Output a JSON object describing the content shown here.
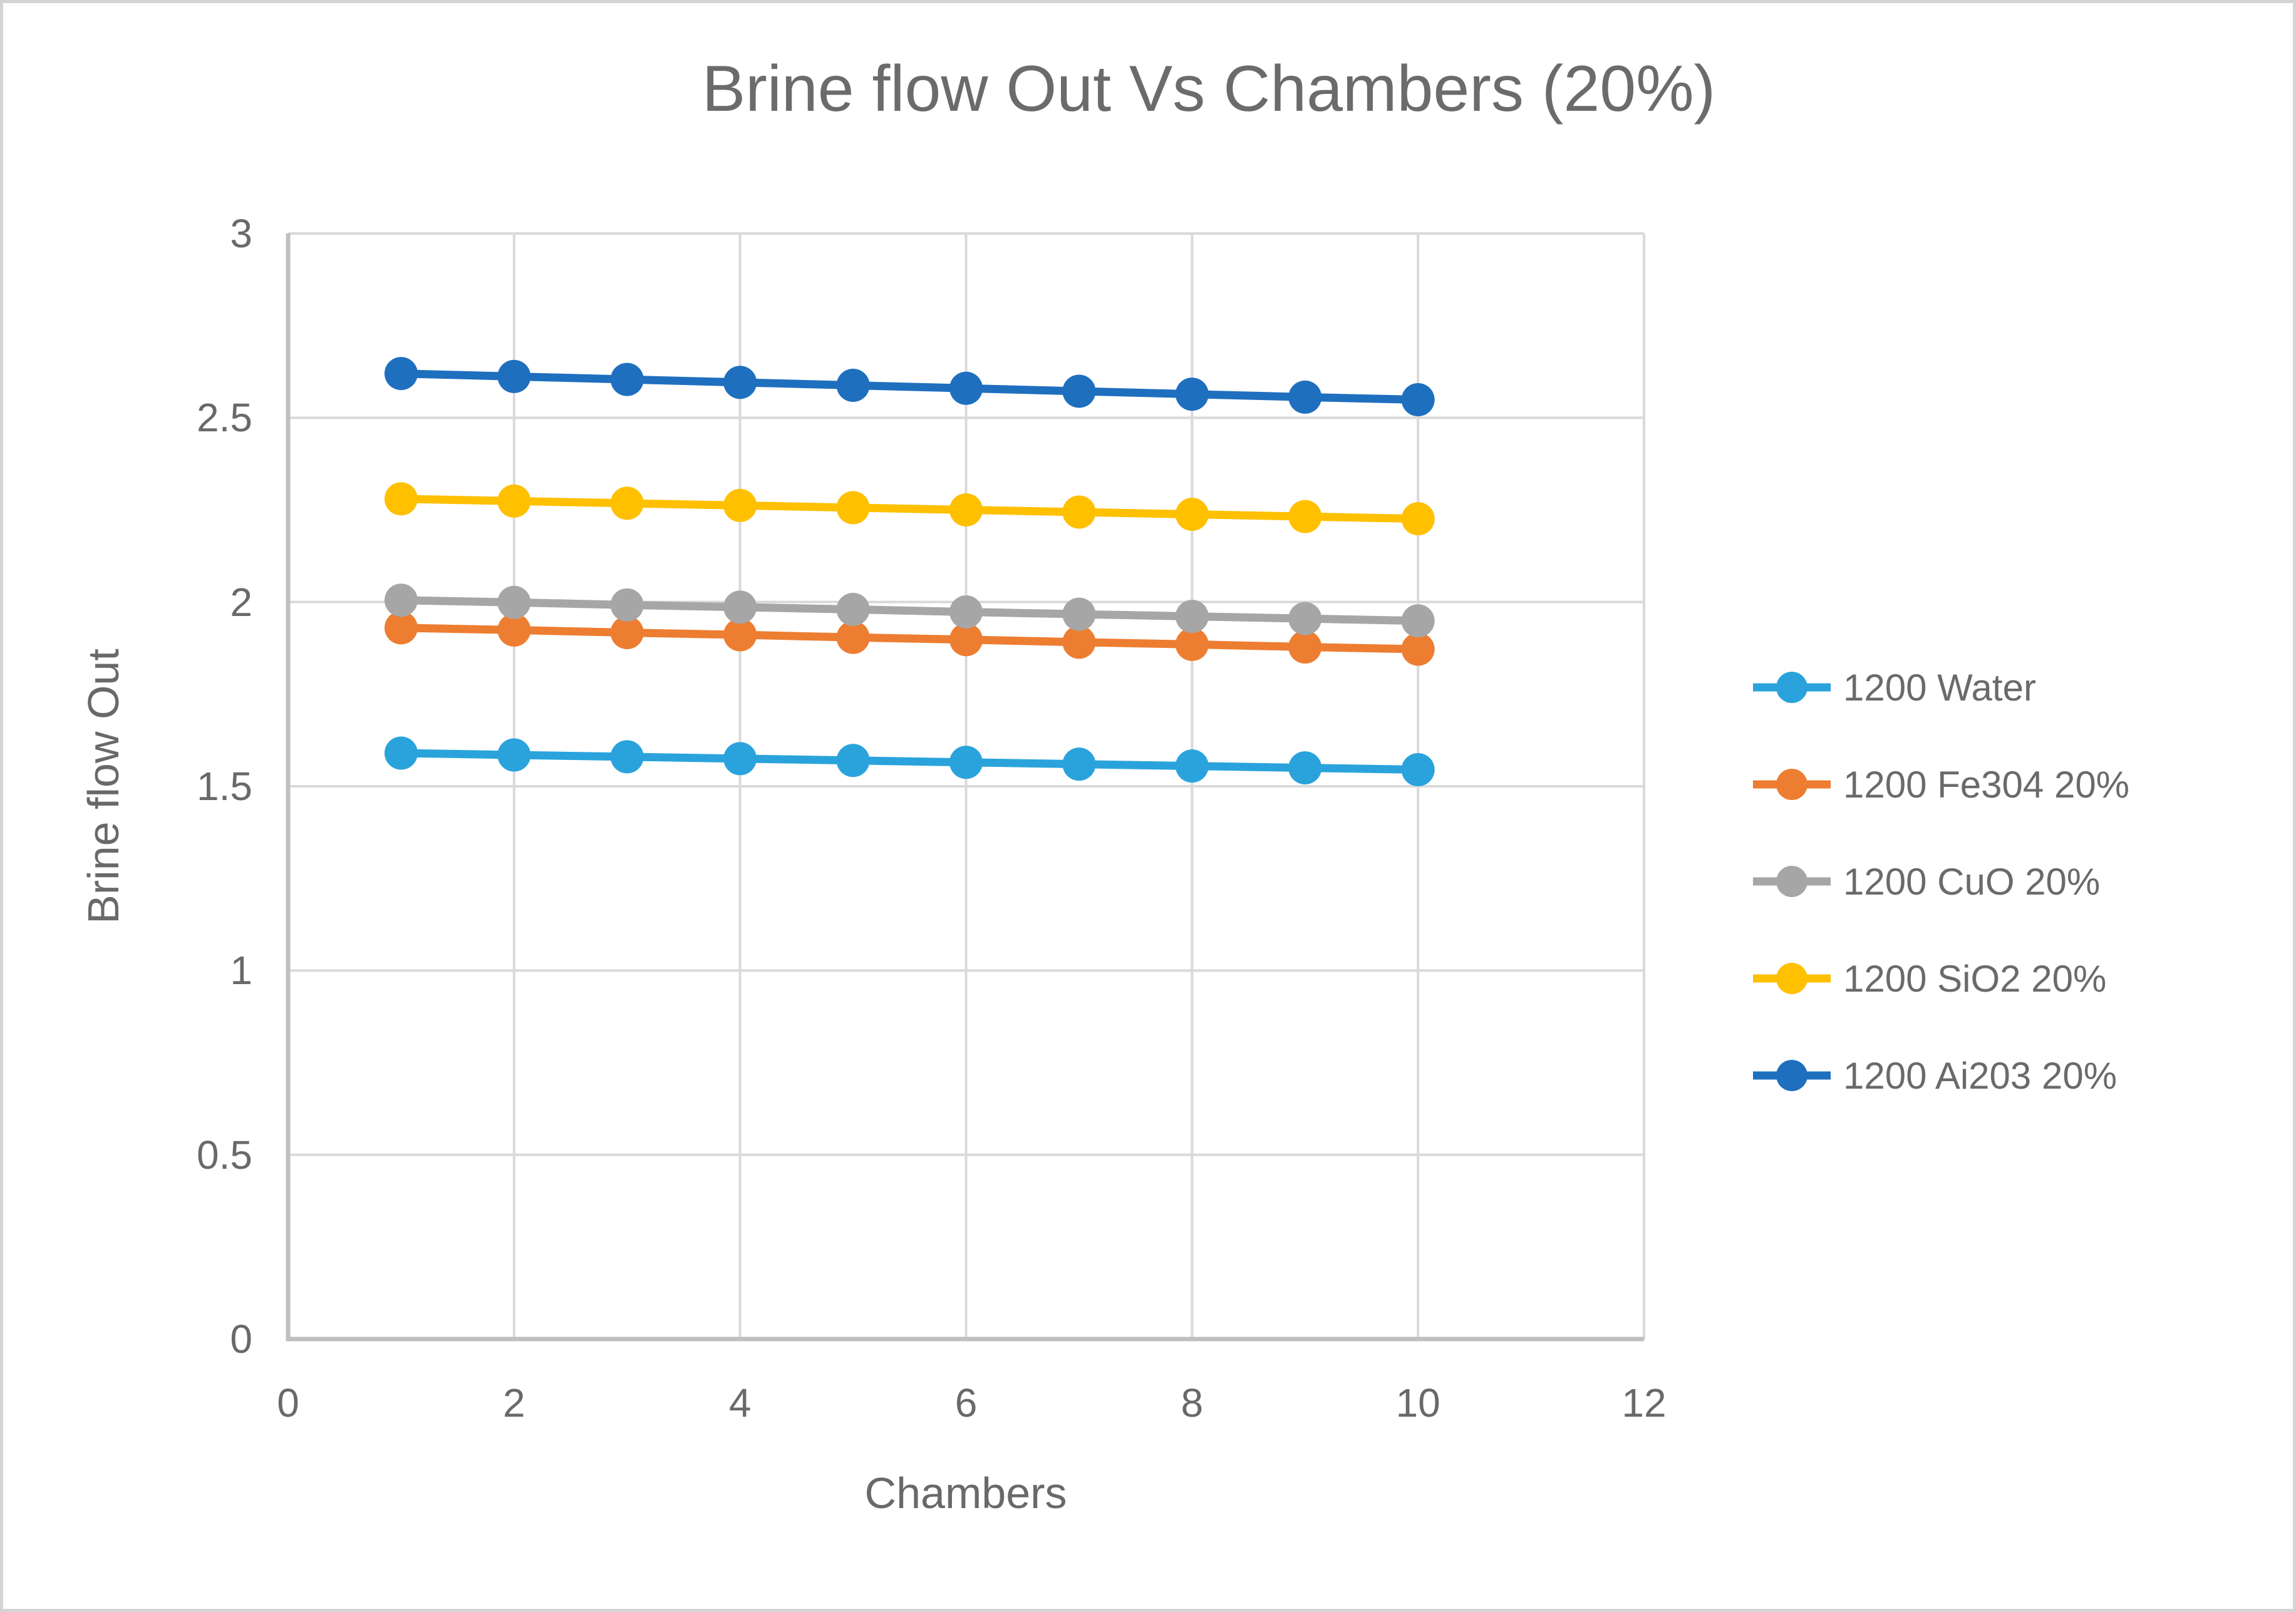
{
  "chart_data": {
    "type": "line",
    "title": "Brine flow Out Vs Chambers (20%)",
    "xlabel": "Chambers",
    "ylabel": "Brine flow Out",
    "xlim": [
      0,
      12
    ],
    "ylim": [
      0,
      3
    ],
    "x_ticks": [
      0,
      2,
      4,
      6,
      8,
      10,
      12
    ],
    "y_ticks": [
      0,
      0.5,
      1,
      1.5,
      2,
      2.5,
      3
    ],
    "grid": true,
    "legend_position": "right",
    "x": [
      1,
      2,
      3,
      4,
      5,
      6,
      7,
      8,
      9,
      10
    ],
    "series": [
      {
        "name": "1200 Water",
        "color": "#2aa3dc",
        "values": [
          1.59,
          1.585,
          1.58,
          1.575,
          1.57,
          1.565,
          1.56,
          1.555,
          1.55,
          1.545
        ]
      },
      {
        "name": "1200 Fe304 20%",
        "color": "#ed7d31",
        "values": [
          1.93,
          1.924,
          1.917,
          1.911,
          1.904,
          1.898,
          1.891,
          1.885,
          1.878,
          1.872
        ]
      },
      {
        "name": "1200 CuO 20%",
        "color": "#a6a6a6",
        "values": [
          2.005,
          1.999,
          1.992,
          1.986,
          1.98,
          1.973,
          1.967,
          1.961,
          1.955,
          1.949
        ]
      },
      {
        "name": "1200 SiO2 20%",
        "color": "#ffc000",
        "values": [
          2.28,
          2.274,
          2.268,
          2.262,
          2.256,
          2.25,
          2.244,
          2.238,
          2.232,
          2.226
        ]
      },
      {
        "name": "1200 Ai203 20%",
        "color": "#1f6fbf",
        "values": [
          2.62,
          2.612,
          2.604,
          2.596,
          2.588,
          2.58,
          2.572,
          2.564,
          2.556,
          2.549
        ]
      }
    ],
    "style": {
      "gridline_color": "#d9d9d9",
      "axis_line_color": "#bfbfbf",
      "text_color": "#696969",
      "marker_radius": 26.5,
      "line_width": 13
    }
  }
}
